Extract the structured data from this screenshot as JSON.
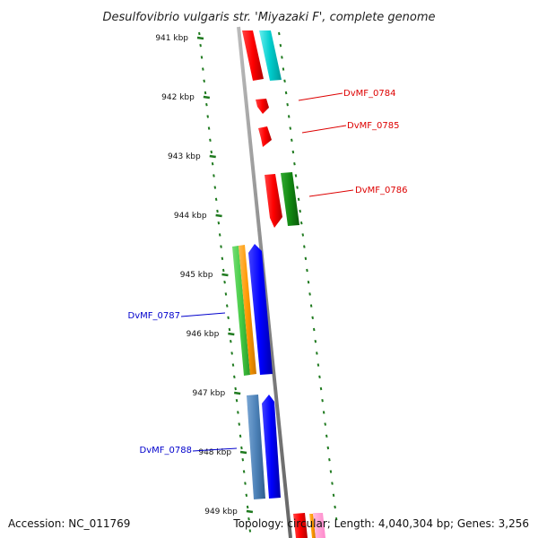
{
  "title": "Desulfovibrio vulgaris str. 'Miyazaki F', complete genome",
  "footer": {
    "accession": "Accession: NC_011769",
    "topology": "Topology: circular; Length: 4,040,304 bp; Genes: 3,256"
  },
  "ruler": {
    "unit": "kbp",
    "ticks": [
      {
        "label": "941 kbp",
        "kbp": 941
      },
      {
        "label": "942 kbp",
        "kbp": 942
      },
      {
        "label": "943 kbp",
        "kbp": 943
      },
      {
        "label": "944 kbp",
        "kbp": 944
      },
      {
        "label": "945 kbp",
        "kbp": 945
      },
      {
        "label": "946 kbp",
        "kbp": 946
      },
      {
        "label": "947 kbp",
        "kbp": 947
      },
      {
        "label": "948 kbp",
        "kbp": 948
      },
      {
        "label": "949 kbp",
        "kbp": 949
      }
    ]
  },
  "gene_labels": [
    {
      "name": "DvMF_0784",
      "color": "#dd0000"
    },
    {
      "name": "DvMF_0785",
      "color": "#dd0000"
    },
    {
      "name": "DvMF_0786",
      "color": "#dd0000"
    },
    {
      "name": "DvMF_0787",
      "color": "#0000cc"
    },
    {
      "name": "DvMF_0788",
      "color": "#0000cc"
    }
  ],
  "colors": {
    "backbone": "#7f7f7f",
    "gc_track": "#1f7a1f",
    "red": "#ff0000",
    "cyan": "#00cccc",
    "dark_green": "#118811",
    "light_green": "#44cc44",
    "orange": "#ff9900",
    "blue": "#0000ff",
    "steel_blue": "#4d82b8",
    "pink": "#ff88cc"
  }
}
